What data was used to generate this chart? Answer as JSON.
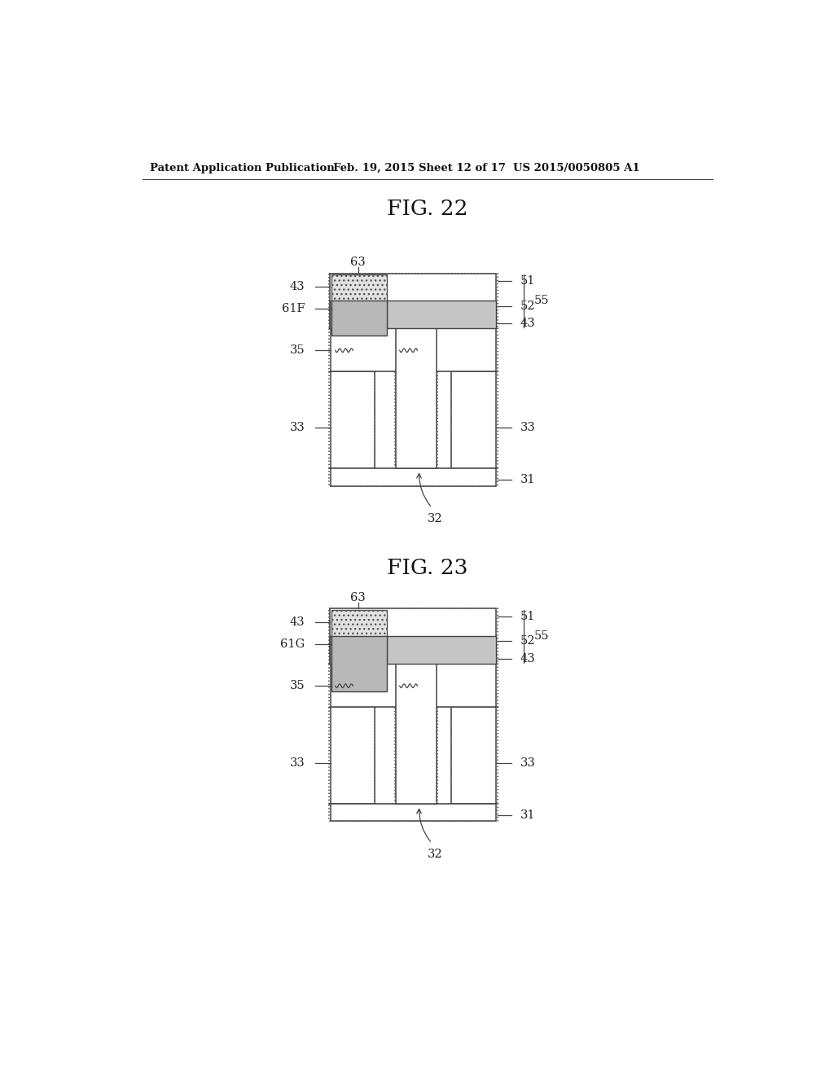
{
  "bg_color": "#ffffff",
  "header_text": "Patent Application Publication",
  "header_date": "Feb. 19, 2015",
  "header_sheet": "Sheet 12 of 17",
  "header_patent": "US 2015/0050805 A1",
  "fig22_title": "FIG. 22",
  "fig23_title": "FIG. 23"
}
